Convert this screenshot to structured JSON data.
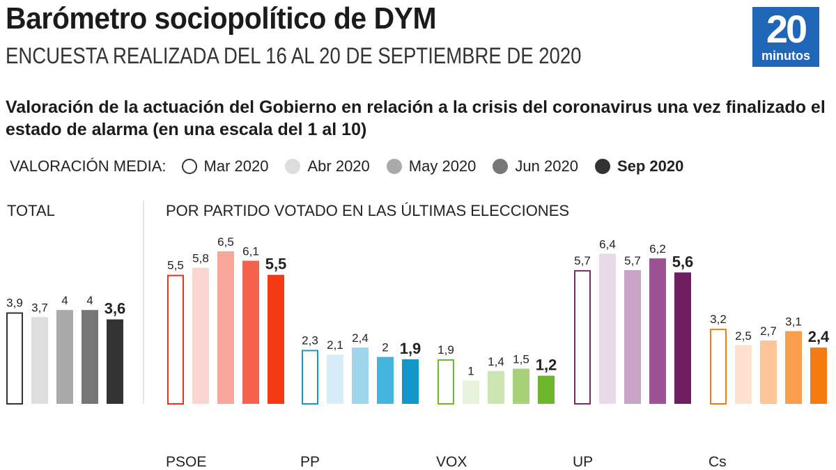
{
  "header": {
    "title": "Barómetro sociopolítico de DYM",
    "subtitle": "ENCUESTA REALIZADA DEL 16 AL 20 DE SEPTIEMBRE DE 2020",
    "logo_number": "20",
    "logo_word": "minutos",
    "logo_color": "#1f66b8"
  },
  "question": "Valoración de la actuación del Gobierno en relación a la crisis del coronavirus una vez finalizado el estado de alarma (en una escala del 1 al 10)",
  "legend": {
    "label": "VALORACIÓN MEDIA:",
    "items": [
      {
        "label": "Mar 2020",
        "fill": "#ffffff",
        "stroke": "#333333"
      },
      {
        "label": "Abr 2020",
        "fill": "#dddddd",
        "stroke": "#dddddd"
      },
      {
        "label": "May 2020",
        "fill": "#aaaaaa",
        "stroke": "#aaaaaa"
      },
      {
        "label": "Jun 2020",
        "fill": "#777777",
        "stroke": "#777777"
      },
      {
        "label": "Sep 2020",
        "fill": "#333333",
        "stroke": "#333333"
      }
    ]
  },
  "sections": {
    "total_label": "TOTAL",
    "parties_label": "POR PARTIDO VOTADO EN LAS ÚLTIMAS ELECCIONES"
  },
  "chart_data": {
    "type": "bar",
    "scale": [
      1,
      10
    ],
    "series_names": [
      "Mar 2020",
      "Abr 2020",
      "May 2020",
      "Jun 2020",
      "Sep 2020"
    ],
    "groups": [
      {
        "name": "",
        "values": [
          3.9,
          3.7,
          4,
          4,
          3.6
        ],
        "labels": [
          "3,9",
          "3,7",
          "4",
          "4",
          "3,6"
        ],
        "colors": [
          "#ffffff",
          "#dddddd",
          "#aaaaaa",
          "#777777",
          "#333333"
        ],
        "outline": "#333333"
      },
      {
        "name": "PSOE",
        "values": [
          5.5,
          5.8,
          6.5,
          6.1,
          5.5
        ],
        "labels": [
          "5,5",
          "5,8",
          "6,5",
          "6,1",
          "5,5"
        ],
        "colors": [
          "#ffffff",
          "#fbd5d0",
          "#f9a79c",
          "#f5634f",
          "#f23a14"
        ],
        "outline": "#e8331a"
      },
      {
        "name": "PP",
        "values": [
          2.3,
          2.1,
          2.4,
          2,
          1.9
        ],
        "labels": [
          "2,3",
          "2,1",
          "2,4",
          "2",
          "1,9"
        ],
        "colors": [
          "#ffffff",
          "#d8eef6",
          "#9fd5ea",
          "#44b6dd",
          "#1596c8"
        ],
        "outline": "#1596c8"
      },
      {
        "name": "VOX",
        "values": [
          1.9,
          1,
          1.4,
          1.5,
          1.2
        ],
        "labels": [
          "1,9",
          "1",
          "1,4",
          "1,5",
          "1,2"
        ],
        "colors": [
          "#ffffff",
          "#e8f2dc",
          "#cde4b3",
          "#a9d179",
          "#6fb62c"
        ],
        "outline": "#6fb62c"
      },
      {
        "name": "UP",
        "values": [
          5.7,
          6.4,
          5.7,
          6.2,
          5.6
        ],
        "labels": [
          "5,7",
          "6,4",
          "5,7",
          "6,2",
          "5,6"
        ],
        "colors": [
          "#ffffff",
          "#e7dbe8",
          "#c8a3c6",
          "#9c5395",
          "#6f1f5e"
        ],
        "outline": "#7a2a68"
      },
      {
        "name": "Cs",
        "values": [
          3.2,
          2.5,
          2.7,
          3.1,
          2.4
        ],
        "labels": [
          "3,2",
          "2,5",
          "2,7",
          "3,1",
          "2,4"
        ],
        "colors": [
          "#ffffff",
          "#fde3cf",
          "#fcc69a",
          "#fa9d4f",
          "#f47b12"
        ],
        "outline": "#f47b12"
      }
    ]
  }
}
